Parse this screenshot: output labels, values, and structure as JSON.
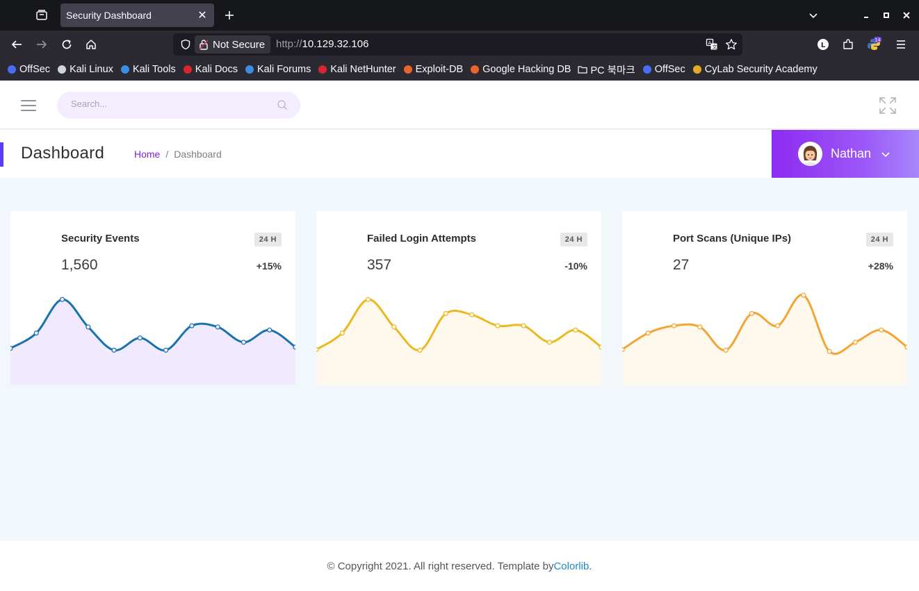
{
  "browser": {
    "tab": {
      "title": "Security Dashboard"
    },
    "url": {
      "security_label": "Not Secure",
      "scheme": "http://",
      "host": "10.129.32.106"
    },
    "extension_badge": "14",
    "profile_initial": "L",
    "bookmarks": [
      {
        "label": "OffSec",
        "icon": "offsec-icon",
        "color": "#4a6cf7"
      },
      {
        "label": "Kali Linux",
        "icon": "kali-dragon-icon",
        "color": "#cfd3da"
      },
      {
        "label": "Kali Tools",
        "icon": "kali-tools-icon",
        "color": "#3a8de0"
      },
      {
        "label": "Kali Docs",
        "icon": "kali-docs-icon",
        "color": "#d9262d"
      },
      {
        "label": "Kali Forums",
        "icon": "kali-forums-icon",
        "color": "#3a8de0"
      },
      {
        "label": "Kali NetHunter",
        "icon": "nethunter-icon",
        "color": "#d9262d"
      },
      {
        "label": "Exploit-DB",
        "icon": "exploit-db-icon",
        "color": "#e4662a"
      },
      {
        "label": "Google Hacking DB",
        "icon": "ghdb-icon",
        "color": "#e4662a"
      },
      {
        "label": "PC 북마크",
        "icon": "folder-icon",
        "color": "#fbfbfe"
      },
      {
        "label": "OffSec",
        "icon": "offsec-icon",
        "color": "#4a6cf7"
      },
      {
        "label": "CyLab Security Academy",
        "icon": "cylab-icon",
        "color": "#e8a92a"
      }
    ]
  },
  "header": {
    "search_placeholder": "Search...",
    "page_title": "Dashboard",
    "breadcrumb": {
      "home": "Home",
      "separator": "/",
      "current": "Dashboard"
    },
    "user_name": "Nathan"
  },
  "cards": [
    {
      "title": "Security Events",
      "badge": "24 H",
      "value": "1,560",
      "change": "+15%",
      "color": "#1a72ad",
      "fill": "#f1e9fe",
      "series": [
        30,
        55,
        110,
        65,
        27,
        47,
        27,
        67,
        65,
        40,
        60,
        32
      ]
    },
    {
      "title": "Failed Login Attempts",
      "badge": "24 H",
      "value": "357",
      "change": "-10%",
      "color": "#eab81f",
      "fill": "#fff8ec",
      "series": [
        28,
        55,
        110,
        65,
        27,
        87,
        85,
        67,
        67,
        40,
        60,
        32
      ]
    },
    {
      "title": "Port Scans (Unique IPs)",
      "badge": "24 H",
      "value": "27",
      "change": "+28%",
      "color": "#f2a533",
      "fill": "#fff8ec",
      "series": [
        28,
        55,
        67,
        65,
        27,
        87,
        67,
        117,
        25,
        40,
        60,
        32
      ]
    }
  ],
  "footer": {
    "text": "© Copyright 2021. All right reserved. Template by ",
    "brand": "Colorlib",
    "end": "."
  }
}
